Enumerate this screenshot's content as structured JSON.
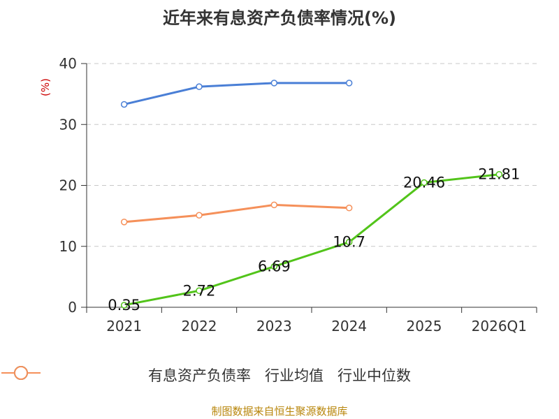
{
  "title": "近年来有息资产负债率情况(%)",
  "unit_label": "(%)",
  "source": "制图数据来自恒生聚源数据库",
  "chart_data": {
    "type": "line",
    "categories": [
      "2021",
      "2022",
      "2023",
      "2024",
      "2025",
      "2026Q1"
    ],
    "ylim": [
      0,
      40
    ],
    "yticks": [
      0,
      10,
      20,
      30,
      40
    ],
    "grid": true,
    "legend_placement": "bottom",
    "series": [
      {
        "name": "有息资产负债率",
        "color": "#52c41a",
        "values": [
          0.35,
          2.72,
          6.69,
          10.7,
          20.46,
          21.81
        ],
        "labels": [
          "0.35",
          "2.72",
          "6.69",
          "10.7",
          "20.46",
          "21.81"
        ]
      },
      {
        "name": "行业均值",
        "color": "#4a7fd6",
        "values": [
          33.3,
          36.2,
          36.8,
          36.8,
          null,
          null
        ]
      },
      {
        "name": "行业中位数",
        "color": "#f5905a",
        "values": [
          14.0,
          15.1,
          16.8,
          16.3,
          null,
          null
        ]
      }
    ]
  }
}
